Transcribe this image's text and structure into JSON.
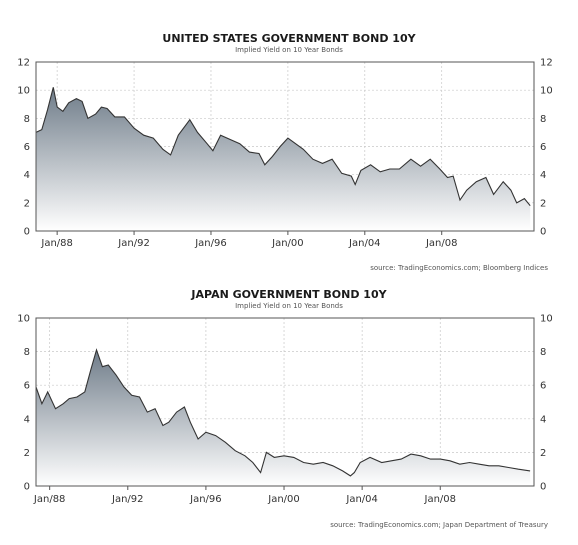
{
  "chart_data": [
    {
      "type": "area",
      "title": "UNITED STATES GOVERNMENT BOND 10Y",
      "subtitle": "Implied Yield on 10 Year Bonds",
      "source": "source: TradingEconomics.com; Bloomberg Indices",
      "x_range": [
        1986.9,
        2012.8
      ],
      "ylim": [
        0,
        12
      ],
      "y_ticks": [
        0,
        2,
        4,
        6,
        8,
        10,
        12
      ],
      "x_ticks": [
        {
          "label": "Jan/88",
          "value": 1988
        },
        {
          "label": "Jan/92",
          "value": 1992
        },
        {
          "label": "Jan/96",
          "value": 1996
        },
        {
          "label": "Jan/00",
          "value": 2000
        },
        {
          "label": "Jan/04",
          "value": 2004
        },
        {
          "label": "Jan/08",
          "value": 2008
        }
      ],
      "grid": true,
      "x": [
        1986.9,
        1987.2,
        1987.5,
        1987.8,
        1988.0,
        1988.3,
        1988.6,
        1989.0,
        1989.3,
        1989.6,
        1990.0,
        1990.3,
        1990.6,
        1991.0,
        1991.5,
        1992.0,
        1992.5,
        1993.0,
        1993.5,
        1993.9,
        1994.3,
        1994.9,
        1995.3,
        1995.8,
        1996.1,
        1996.5,
        1997.0,
        1997.5,
        1998.0,
        1998.5,
        1998.8,
        1999.2,
        1999.6,
        2000.0,
        2000.3,
        2000.8,
        2001.3,
        2001.8,
        2002.3,
        2002.8,
        2003.3,
        2003.5,
        2003.8,
        2004.3,
        2004.8,
        2005.3,
        2005.8,
        2006.4,
        2006.9,
        2007.4,
        2007.9,
        2008.3,
        2008.6,
        2008.95,
        2009.3,
        2009.8,
        2010.3,
        2010.7,
        2011.2,
        2011.6,
        2011.9,
        2012.3,
        2012.6
      ],
      "y": [
        7.0,
        7.2,
        8.6,
        10.2,
        8.8,
        8.5,
        9.1,
        9.4,
        9.2,
        8.0,
        8.3,
        8.8,
        8.7,
        8.1,
        8.1,
        7.3,
        6.8,
        6.6,
        5.8,
        5.4,
        6.8,
        7.9,
        7.0,
        6.2,
        5.7,
        6.8,
        6.5,
        6.2,
        5.6,
        5.5,
        4.7,
        5.3,
        6.0,
        6.6,
        6.3,
        5.8,
        5.1,
        4.8,
        5.1,
        4.1,
        3.9,
        3.3,
        4.3,
        4.7,
        4.2,
        4.4,
        4.4,
        5.1,
        4.6,
        5.1,
        4.4,
        3.8,
        3.9,
        2.2,
        2.9,
        3.5,
        3.8,
        2.6,
        3.5,
        2.9,
        2.0,
        2.3,
        1.8
      ]
    },
    {
      "type": "area",
      "title": "JAPAN GOVERNMENT BOND 10Y",
      "subtitle": "Implied Yield on 10 Year Bonds",
      "source": "source: TradingEconomics.com; Japan Department of Treasury",
      "x_range": [
        1987.3,
        2012.8
      ],
      "ylim": [
        0,
        10
      ],
      "y_ticks": [
        0,
        2,
        4,
        6,
        8,
        10
      ],
      "x_ticks": [
        {
          "label": "Jan/88",
          "value": 1988
        },
        {
          "label": "Jan/92",
          "value": 1992
        },
        {
          "label": "Jan/96",
          "value": 1996
        },
        {
          "label": "Jan/00",
          "value": 2000
        },
        {
          "label": "Jan/04",
          "value": 2004
        },
        {
          "label": "Jan/08",
          "value": 2008
        }
      ],
      "grid": true,
      "x": [
        1987.3,
        1987.6,
        1987.9,
        1988.3,
        1988.7,
        1989.0,
        1989.4,
        1989.8,
        1990.1,
        1990.4,
        1990.7,
        1991.0,
        1991.4,
        1991.8,
        1992.2,
        1992.6,
        1993.0,
        1993.4,
        1993.8,
        1994.1,
        1994.5,
        1994.9,
        1995.2,
        1995.6,
        1996.0,
        1996.5,
        1997.0,
        1997.5,
        1998.0,
        1998.4,
        1998.8,
        1999.1,
        1999.5,
        2000.0,
        2000.5,
        2001.0,
        2001.5,
        2002.0,
        2002.5,
        2003.0,
        2003.4,
        2003.6,
        2003.9,
        2004.4,
        2005.0,
        2005.5,
        2006.0,
        2006.5,
        2007.0,
        2007.5,
        2008.0,
        2008.5,
        2009.0,
        2009.5,
        2010.0,
        2010.5,
        2011.0,
        2011.5,
        2012.0,
        2012.6
      ],
      "y": [
        5.9,
        4.9,
        5.6,
        4.6,
        4.9,
        5.2,
        5.3,
        5.6,
        6.9,
        8.1,
        7.1,
        7.2,
        6.6,
        5.9,
        5.4,
        5.3,
        4.4,
        4.6,
        3.6,
        3.8,
        4.4,
        4.7,
        3.8,
        2.8,
        3.2,
        3.0,
        2.6,
        2.1,
        1.8,
        1.4,
        0.8,
        2.0,
        1.7,
        1.8,
        1.7,
        1.4,
        1.3,
        1.4,
        1.2,
        0.9,
        0.6,
        0.8,
        1.4,
        1.7,
        1.4,
        1.5,
        1.6,
        1.9,
        1.8,
        1.6,
        1.6,
        1.5,
        1.3,
        1.4,
        1.3,
        1.2,
        1.2,
        1.1,
        1.0,
        0.9
      ]
    }
  ]
}
